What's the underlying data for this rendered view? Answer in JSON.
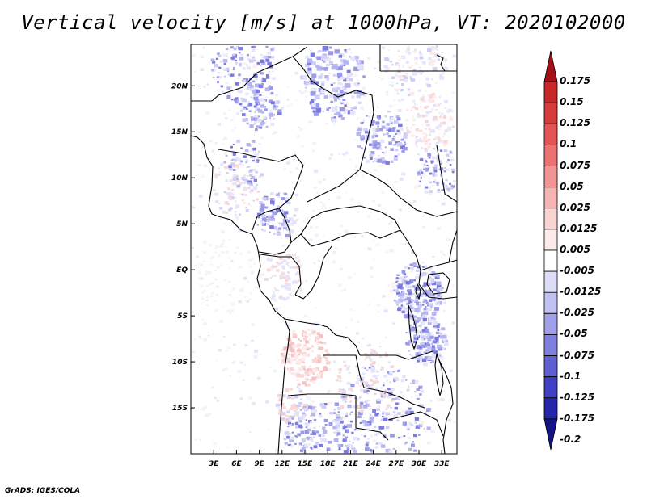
{
  "title": "Vertical velocity [m/s] at 1000hPa, VT: 2020102000",
  "footer": "GrADS: IGES/COLA",
  "map": {
    "lon_range": [
      0,
      35
    ],
    "lat_range": [
      -20,
      24.5
    ],
    "lon_ticks": [
      "3E",
      "6E",
      "9E",
      "12E",
      "15E",
      "18E",
      "21E",
      "24E",
      "27E",
      "30E",
      "33E"
    ],
    "lat_ticks": [
      "20N",
      "15N",
      "10N",
      "5N",
      "EQ",
      "5S",
      "10S",
      "15S"
    ]
  },
  "colorbar": {
    "labels": [
      "0.175",
      "0.15",
      "0.125",
      "0.1",
      "0.075",
      "0.05",
      "0.025",
      "0.0125",
      "0.005",
      "-0.005",
      "-0.0125",
      "-0.025",
      "-0.05",
      "-0.075",
      "-0.1",
      "-0.125",
      "-0.175",
      "-0.2"
    ],
    "colors": [
      "#a50f15",
      "#c62828",
      "#d63b3b",
      "#e25555",
      "#ec7272",
      "#f29494",
      "#f6b3b3",
      "#fad3d3",
      "#fdeaea",
      "#ffffff",
      "#dcdcf8",
      "#c0c0f2",
      "#9f9fea",
      "#7f7fe0",
      "#5f5fd4",
      "#3f3fc4",
      "#2525aa",
      "#141487"
    ]
  }
}
